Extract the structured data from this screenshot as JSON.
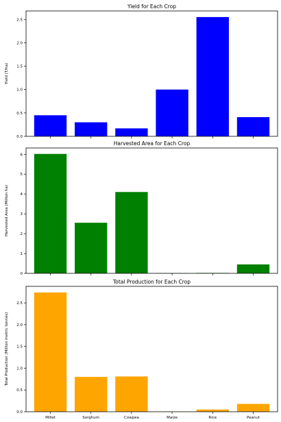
{
  "chart_data": [
    {
      "type": "bar",
      "title": "Yield for Each Crop",
      "ylabel": "Yield (T/ha)",
      "xlabel": "",
      "color": "#0000ff",
      "categories": [
        "Millet",
        "Sorghum",
        "Cowpea",
        "Maize",
        "Rice",
        "Peanut"
      ],
      "values": [
        0.45,
        0.3,
        0.17,
        1.0,
        2.55,
        0.41
      ],
      "ylim": [
        0,
        2.68
      ],
      "yticks": [
        "0.0",
        "0.5",
        "1.0",
        "1.5",
        "2.0",
        "2.5"
      ],
      "show_xticklabels": false
    },
    {
      "type": "bar",
      "title": "Harvested Area for Each Crop",
      "ylabel": "Harvested Area (Million ha)",
      "xlabel": "",
      "color": "#008000",
      "categories": [
        "Millet",
        "Sorghum",
        "Cowpea",
        "Maize",
        "Rice",
        "Peanut"
      ],
      "values": [
        6.02,
        2.55,
        4.1,
        0.005,
        0.02,
        0.45
      ],
      "ylim": [
        0,
        6.32
      ],
      "yticks": [
        "0",
        "1",
        "2",
        "3",
        "4",
        "5",
        "6"
      ],
      "show_xticklabels": false
    },
    {
      "type": "bar",
      "title": "Total Production for Each Crop",
      "ylabel": "Total Production (Million metric tonnes)",
      "xlabel": "",
      "color": "#ffa500",
      "categories": [
        "Millet",
        "Sorghum",
        "Cowpea",
        "Maize",
        "Rice",
        "Peanut"
      ],
      "values": [
        2.74,
        0.8,
        0.81,
        0.005,
        0.05,
        0.18
      ],
      "ylim": [
        0,
        2.88
      ],
      "yticks": [
        "0.0",
        "0.5",
        "1.0",
        "1.5",
        "2.0",
        "2.5"
      ],
      "show_xticklabels": true
    }
  ]
}
